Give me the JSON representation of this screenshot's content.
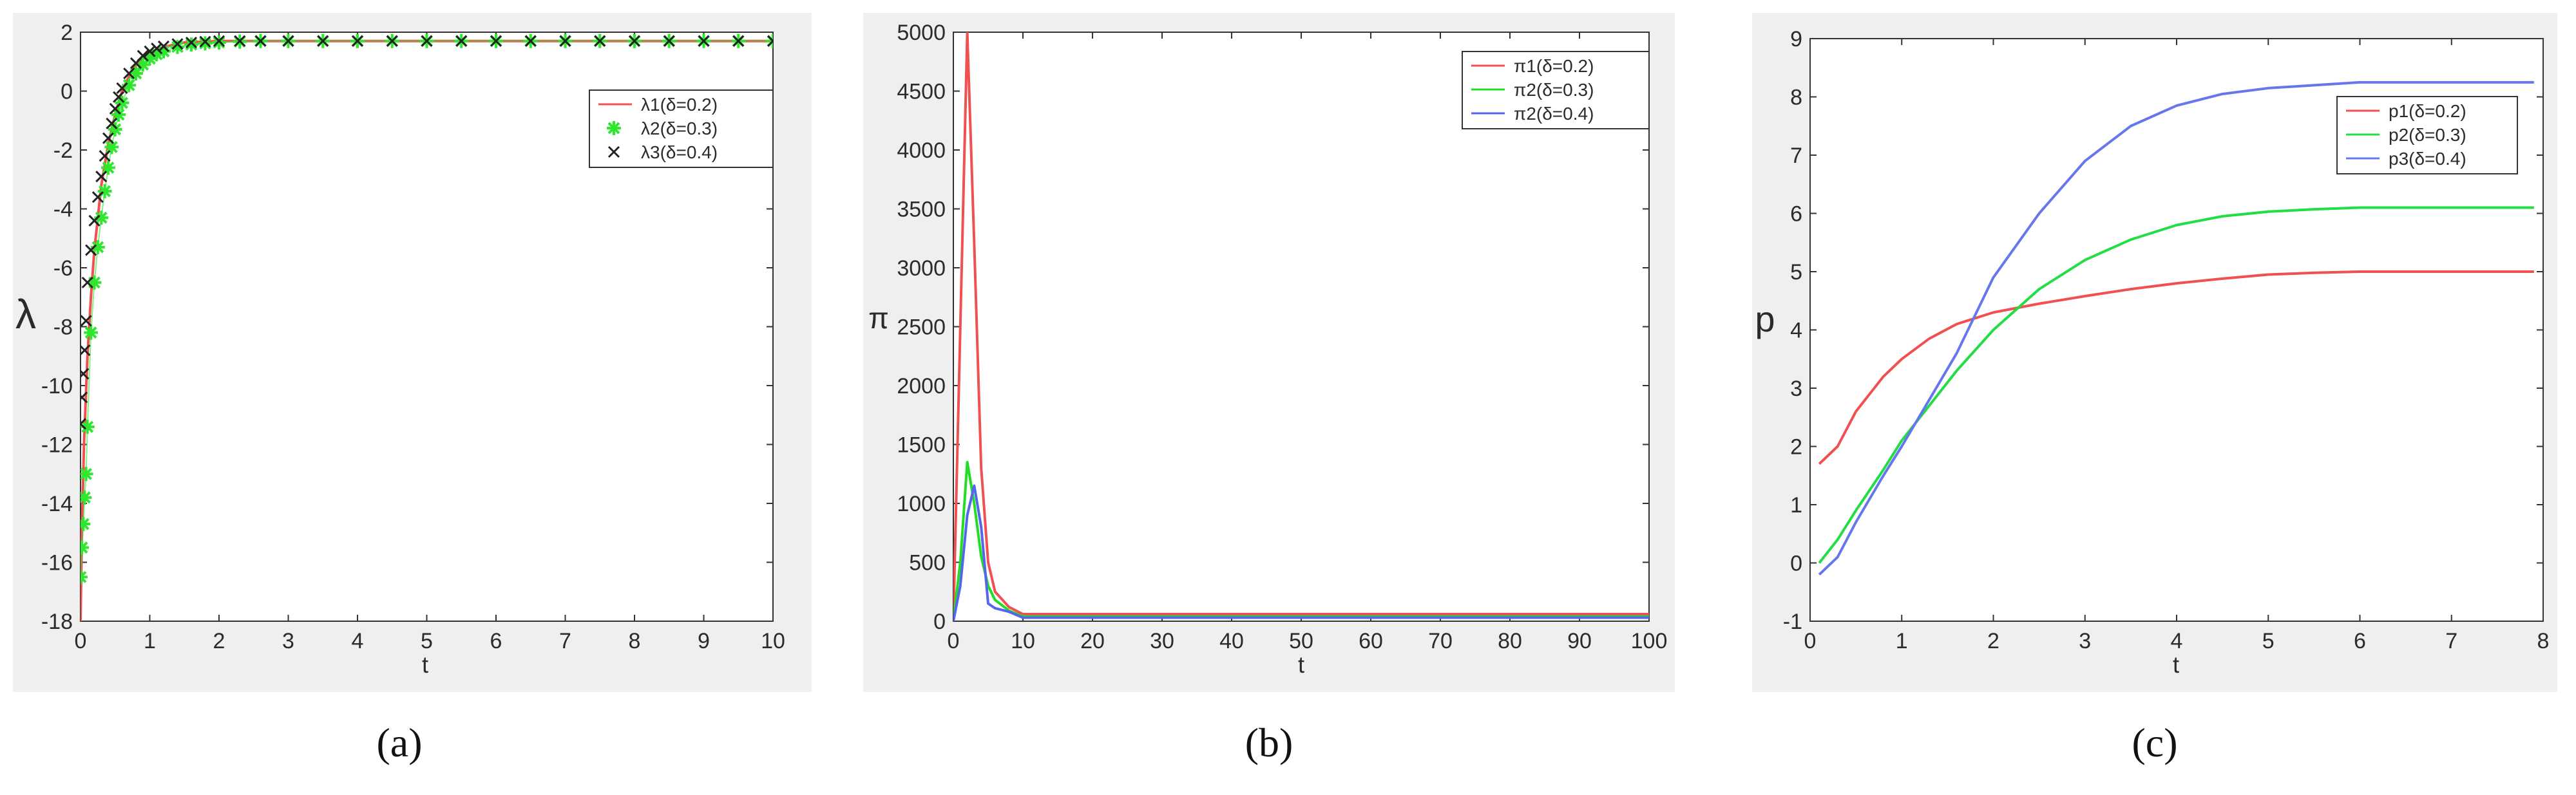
{
  "chart_data": [
    {
      "type": "line",
      "caption": "(a)",
      "xlabel": "t",
      "ylabel": "λ",
      "xlim": [
        0,
        10
      ],
      "ylim": [
        -18,
        2
      ],
      "x_ticks": [
        "0",
        "1",
        "2",
        "3",
        "4",
        "5",
        "6",
        "7",
        "8",
        "9",
        "10"
      ],
      "y_ticks": [
        "-18",
        "-16",
        "-14",
        "-12",
        "-10",
        "-8",
        "-6",
        "-4",
        "-2",
        "0",
        "2"
      ],
      "legend_position": "top-right",
      "series": [
        {
          "name": "λ1(δ=0.2)",
          "style": "line",
          "color": "#f05050",
          "x": [
            0,
            0.02,
            0.05,
            0.1,
            0.15,
            0.2,
            0.3,
            0.4,
            0.5,
            0.6,
            0.7,
            0.8,
            1.0,
            1.2,
            1.5,
            2,
            3,
            4,
            5,
            6,
            7,
            8,
            9,
            10
          ],
          "y": [
            -18,
            -15,
            -12,
            -9,
            -7,
            -5.4,
            -3.2,
            -1.8,
            -0.8,
            0,
            0.5,
            0.9,
            1.3,
            1.5,
            1.65,
            1.7,
            1.7,
            1.7,
            1.7,
            1.7,
            1.7,
            1.7,
            1.7,
            1.7
          ]
        },
        {
          "name": "λ2(δ=0.3)",
          "style": "star",
          "color": "#2ee82e",
          "x": [
            0,
            0.02,
            0.04,
            0.06,
            0.08,
            0.1,
            0.15,
            0.2,
            0.25,
            0.3,
            0.35,
            0.4,
            0.45,
            0.5,
            0.55,
            0.6,
            0.7,
            0.8,
            0.9,
            1.0,
            1.1,
            1.2,
            1.4,
            1.6,
            1.8,
            2.0,
            2.3,
            2.6,
            3,
            3.5,
            4,
            4.5,
            5,
            5.5,
            6,
            6.5,
            7,
            7.5,
            8,
            8.5,
            9,
            9.5,
            10
          ],
          "y": [
            -16.5,
            -15.5,
            -14.7,
            -13.8,
            -13,
            -11.4,
            -8.2,
            -6.5,
            -5.3,
            -4.3,
            -3.4,
            -2.6,
            -1.9,
            -1.3,
            -0.8,
            -0.4,
            0.2,
            0.6,
            0.9,
            1.1,
            1.25,
            1.35,
            1.5,
            1.58,
            1.62,
            1.65,
            1.68,
            1.7,
            1.7,
            1.7,
            1.7,
            1.7,
            1.7,
            1.7,
            1.7,
            1.7,
            1.7,
            1.7,
            1.7,
            1.7,
            1.7,
            1.7,
            1.7
          ]
        },
        {
          "name": "λ3(δ=0.4)",
          "style": "x",
          "color": "#222222",
          "x": [
            0,
            0.02,
            0.04,
            0.06,
            0.08,
            0.1,
            0.15,
            0.2,
            0.25,
            0.3,
            0.35,
            0.4,
            0.45,
            0.5,
            0.55,
            0.6,
            0.7,
            0.8,
            0.9,
            1.0,
            1.1,
            1.2,
            1.4,
            1.6,
            1.8,
            2.0,
            2.3,
            2.6,
            3,
            3.5,
            4,
            4.5,
            5,
            5.5,
            6,
            6.5,
            7,
            7.5,
            8,
            8.5,
            9,
            9.5,
            10
          ],
          "y": [
            -11.3,
            -10.4,
            -9.6,
            -8.8,
            -7.8,
            -6.5,
            -5.4,
            -4.4,
            -3.6,
            -2.9,
            -2.2,
            -1.6,
            -1.1,
            -0.6,
            -0.2,
            0.1,
            0.6,
            0.95,
            1.2,
            1.35,
            1.45,
            1.52,
            1.6,
            1.65,
            1.68,
            1.7,
            1.7,
            1.7,
            1.7,
            1.7,
            1.7,
            1.7,
            1.7,
            1.7,
            1.7,
            1.7,
            1.7,
            1.7,
            1.7,
            1.7,
            1.7,
            1.7,
            1.7
          ]
        }
      ]
    },
    {
      "type": "line",
      "caption": "(b)",
      "xlabel": "t",
      "ylabel": "π",
      "xlim": [
        0,
        100
      ],
      "ylim": [
        0,
        5000
      ],
      "x_ticks": [
        "0",
        "10",
        "20",
        "30",
        "40",
        "50",
        "60",
        "70",
        "80",
        "90",
        "100"
      ],
      "y_ticks": [
        "0",
        "500",
        "1000",
        "1500",
        "2000",
        "2500",
        "3000",
        "3500",
        "4000",
        "4500",
        "5000"
      ],
      "legend_position": "top-right",
      "series": [
        {
          "name": "π1(δ=0.2)",
          "color": "#f05050",
          "x": [
            0,
            1,
            2,
            3,
            4,
            5,
            6,
            8,
            10,
            12,
            20,
            40,
            60,
            80,
            100
          ],
          "y": [
            0,
            2500,
            5000,
            3200,
            1300,
            500,
            250,
            120,
            60,
            60,
            60,
            60,
            60,
            60,
            60
          ]
        },
        {
          "name": "π2(δ=0.3)",
          "color": "#22dd22",
          "x": [
            0,
            1,
            2,
            3,
            4,
            5,
            6,
            8,
            10,
            12,
            20,
            40,
            60,
            80,
            100
          ],
          "y": [
            0,
            500,
            1350,
            1000,
            550,
            300,
            180,
            90,
            40,
            40,
            40,
            40,
            40,
            40,
            40
          ]
        },
        {
          "name": "π2(δ=0.4)",
          "color": "#5566ee",
          "x": [
            0,
            1,
            2,
            3,
            4,
            5,
            6,
            8,
            10,
            12,
            20,
            40,
            60,
            80,
            100
          ],
          "y": [
            0,
            300,
            900,
            1150,
            800,
            150,
            110,
            80,
            30,
            30,
            30,
            30,
            30,
            30,
            30
          ]
        }
      ]
    },
    {
      "type": "line",
      "caption": "(c)",
      "xlabel": "t",
      "ylabel": "p",
      "xlim": [
        0,
        8
      ],
      "ylim": [
        -1,
        9
      ],
      "x_ticks": [
        "0",
        "1",
        "2",
        "3",
        "4",
        "5",
        "6",
        "7",
        "8"
      ],
      "y_ticks": [
        "-1",
        "0",
        "1",
        "2",
        "3",
        "4",
        "5",
        "6",
        "7",
        "8",
        "9"
      ],
      "legend_position": "top-right",
      "series": [
        {
          "name": "p1(δ=0.2)",
          "color": "#f05050",
          "x": [
            0.1,
            0.3,
            0.5,
            0.8,
            1.0,
            1.3,
            1.6,
            2.0,
            2.5,
            3.0,
            3.5,
            4.0,
            4.5,
            5.0,
            5.5,
            6.0,
            7.0,
            7.9
          ],
          "y": [
            1.7,
            2.0,
            2.6,
            3.2,
            3.5,
            3.85,
            4.1,
            4.3,
            4.45,
            4.58,
            4.7,
            4.8,
            4.88,
            4.95,
            4.98,
            5.0,
            5.0,
            5.0
          ]
        },
        {
          "name": "p2(δ=0.3)",
          "color": "#22dd44",
          "x": [
            0.1,
            0.3,
            0.5,
            0.8,
            1.0,
            1.3,
            1.6,
            2.0,
            2.5,
            3.0,
            3.5,
            4.0,
            4.5,
            5.0,
            5.5,
            6.0,
            7.0,
            7.9
          ],
          "y": [
            0.0,
            0.4,
            0.9,
            1.6,
            2.1,
            2.7,
            3.3,
            4.0,
            4.7,
            5.2,
            5.55,
            5.8,
            5.95,
            6.03,
            6.07,
            6.1,
            6.1,
            6.1
          ]
        },
        {
          "name": "p3(δ=0.4)",
          "color": "#6677ee",
          "x": [
            0.1,
            0.3,
            0.5,
            0.8,
            1.0,
            1.3,
            1.6,
            2.0,
            2.5,
            3.0,
            3.5,
            4.0,
            4.5,
            5.0,
            5.5,
            6.0,
            7.0,
            7.9
          ],
          "y": [
            -0.2,
            0.1,
            0.7,
            1.5,
            2.0,
            2.8,
            3.6,
            4.9,
            6.0,
            6.9,
            7.5,
            7.85,
            8.05,
            8.15,
            8.2,
            8.25,
            8.25,
            8.25
          ]
        }
      ]
    }
  ]
}
